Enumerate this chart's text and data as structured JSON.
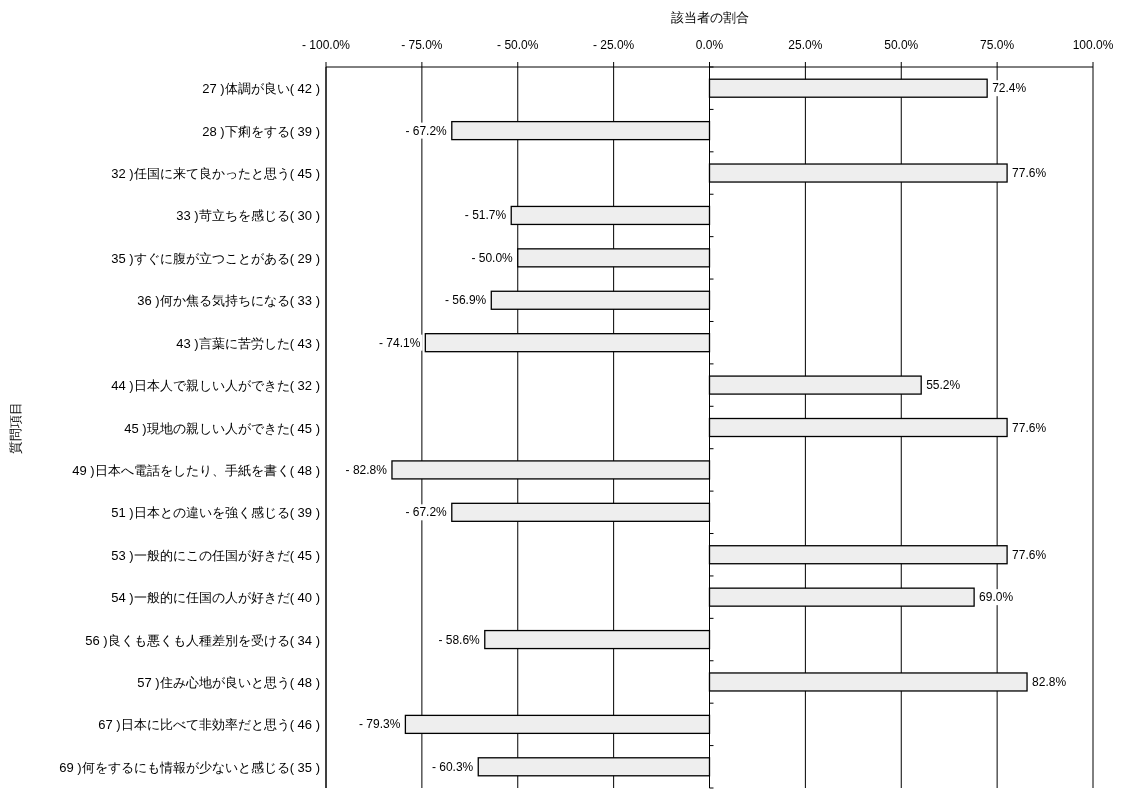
{
  "chart_data": {
    "type": "bar",
    "orientation": "horizontal",
    "xlabel": "該当者の割合",
    "ylabel": "質問項目",
    "categories": [
      "27 )体調が良い( 42 )",
      "28 )下痢をする( 39 )",
      "32 )任国に来て良かったと思う( 45 )",
      "33 )苛立ちを感じる( 30 )",
      "35 )すぐに腹が立つことがある( 29 )",
      "36 )何か焦る気持ちになる( 33 )",
      "43 )言葉に苦労した( 43 )",
      "44 )日本人で親しい人ができた( 32 )",
      "45 )現地の親しい人ができた( 45 )",
      "49 )日本へ電話をしたり、手紙を書く( 48 )",
      "51 )日本との違いを強く感じる( 39 )",
      "53 )一般的にこの任国が好きだ( 45 )",
      "54 )一般的に任国の人が好きだ( 40 )",
      "56 )良くも悪くも人種差別を受ける( 34 )",
      "57 )住み心地が良いと思う( 48 )",
      "67 )日本に比べて非効率だと思う( 46 )",
      "69 )何をするにも情報が少ないと感じる( 35 )"
    ],
    "values": [
      72.4,
      -67.2,
      77.6,
      -51.7,
      -50.0,
      -56.9,
      -74.1,
      55.2,
      77.6,
      -82.8,
      -67.2,
      77.6,
      69.0,
      -58.6,
      82.8,
      -79.3,
      -60.3
    ],
    "value_labels": [
      "72.4%",
      "- 67.2%",
      "77.6%",
      "- 51.7%",
      "- 50.0%",
      "- 56.9%",
      "- 74.1%",
      "55.2%",
      "77.6%",
      "- 82.8%",
      "- 67.2%",
      "77.6%",
      "69.0%",
      "- 58.6%",
      "82.8%",
      "- 79.3%",
      "- 60.3%"
    ],
    "color": "#eeeeee",
    "xlim": [
      -100,
      100
    ],
    "xticks": [
      {
        "value": -100,
        "label": "- 100.0%"
      },
      {
        "value": -75,
        "label": "- 75.0%"
      },
      {
        "value": -50,
        "label": "- 50.0%"
      },
      {
        "value": -25,
        "label": "- 25.0%"
      },
      {
        "value": 0,
        "label": "0.0%"
      },
      {
        "value": 25,
        "label": "25.0%"
      },
      {
        "value": 50,
        "label": "50.0%"
      },
      {
        "value": 75,
        "label": "75.0%"
      },
      {
        "value": 100,
        "label": "100.0%"
      }
    ],
    "grid": "x"
  }
}
